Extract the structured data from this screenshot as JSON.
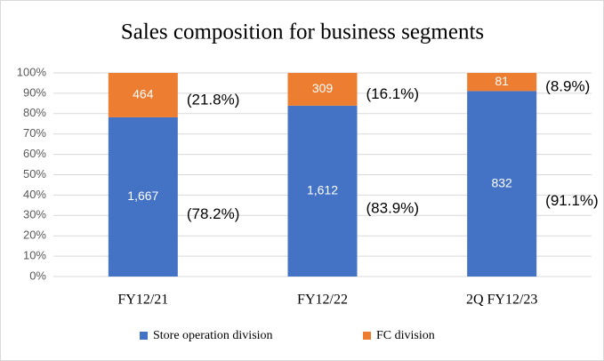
{
  "chart_data": {
    "type": "stacked_bar_100",
    "title": "Sales composition for business segments",
    "categories": [
      "FY12/21",
      "FY12/22",
      "2Q FY12/23"
    ],
    "series": [
      {
        "name": "Store operation division",
        "color": "#4472c4",
        "values": [
          78.2,
          83.9,
          91.1
        ],
        "value_labels": [
          "(78.2%)",
          "(83.9%)",
          "(91.1%)"
        ],
        "amount_labels": [
          "1,667",
          "1,612",
          "832"
        ]
      },
      {
        "name": "FC division",
        "color": "#ed7d31",
        "values": [
          21.8,
          16.1,
          8.9
        ],
        "value_labels": [
          "(21.8%)",
          "(16.1%)",
          "(8.9%)"
        ],
        "amount_labels": [
          "464",
          "309",
          "81"
        ]
      }
    ],
    "ylim": [
      0,
      100
    ],
    "yticks": [
      {
        "value": 0,
        "label": "0%"
      },
      {
        "value": 10,
        "label": "10%"
      },
      {
        "value": 20,
        "label": "20%"
      },
      {
        "value": 30,
        "label": "30%"
      },
      {
        "value": 40,
        "label": "40%"
      },
      {
        "value": 50,
        "label": "50%"
      },
      {
        "value": 60,
        "label": "60%"
      },
      {
        "value": 70,
        "label": "70%"
      },
      {
        "value": 80,
        "label": "80%"
      },
      {
        "value": 90,
        "label": "90%"
      },
      {
        "value": 100,
        "label": "100%"
      }
    ],
    "grid": true,
    "legend": "bottom"
  }
}
